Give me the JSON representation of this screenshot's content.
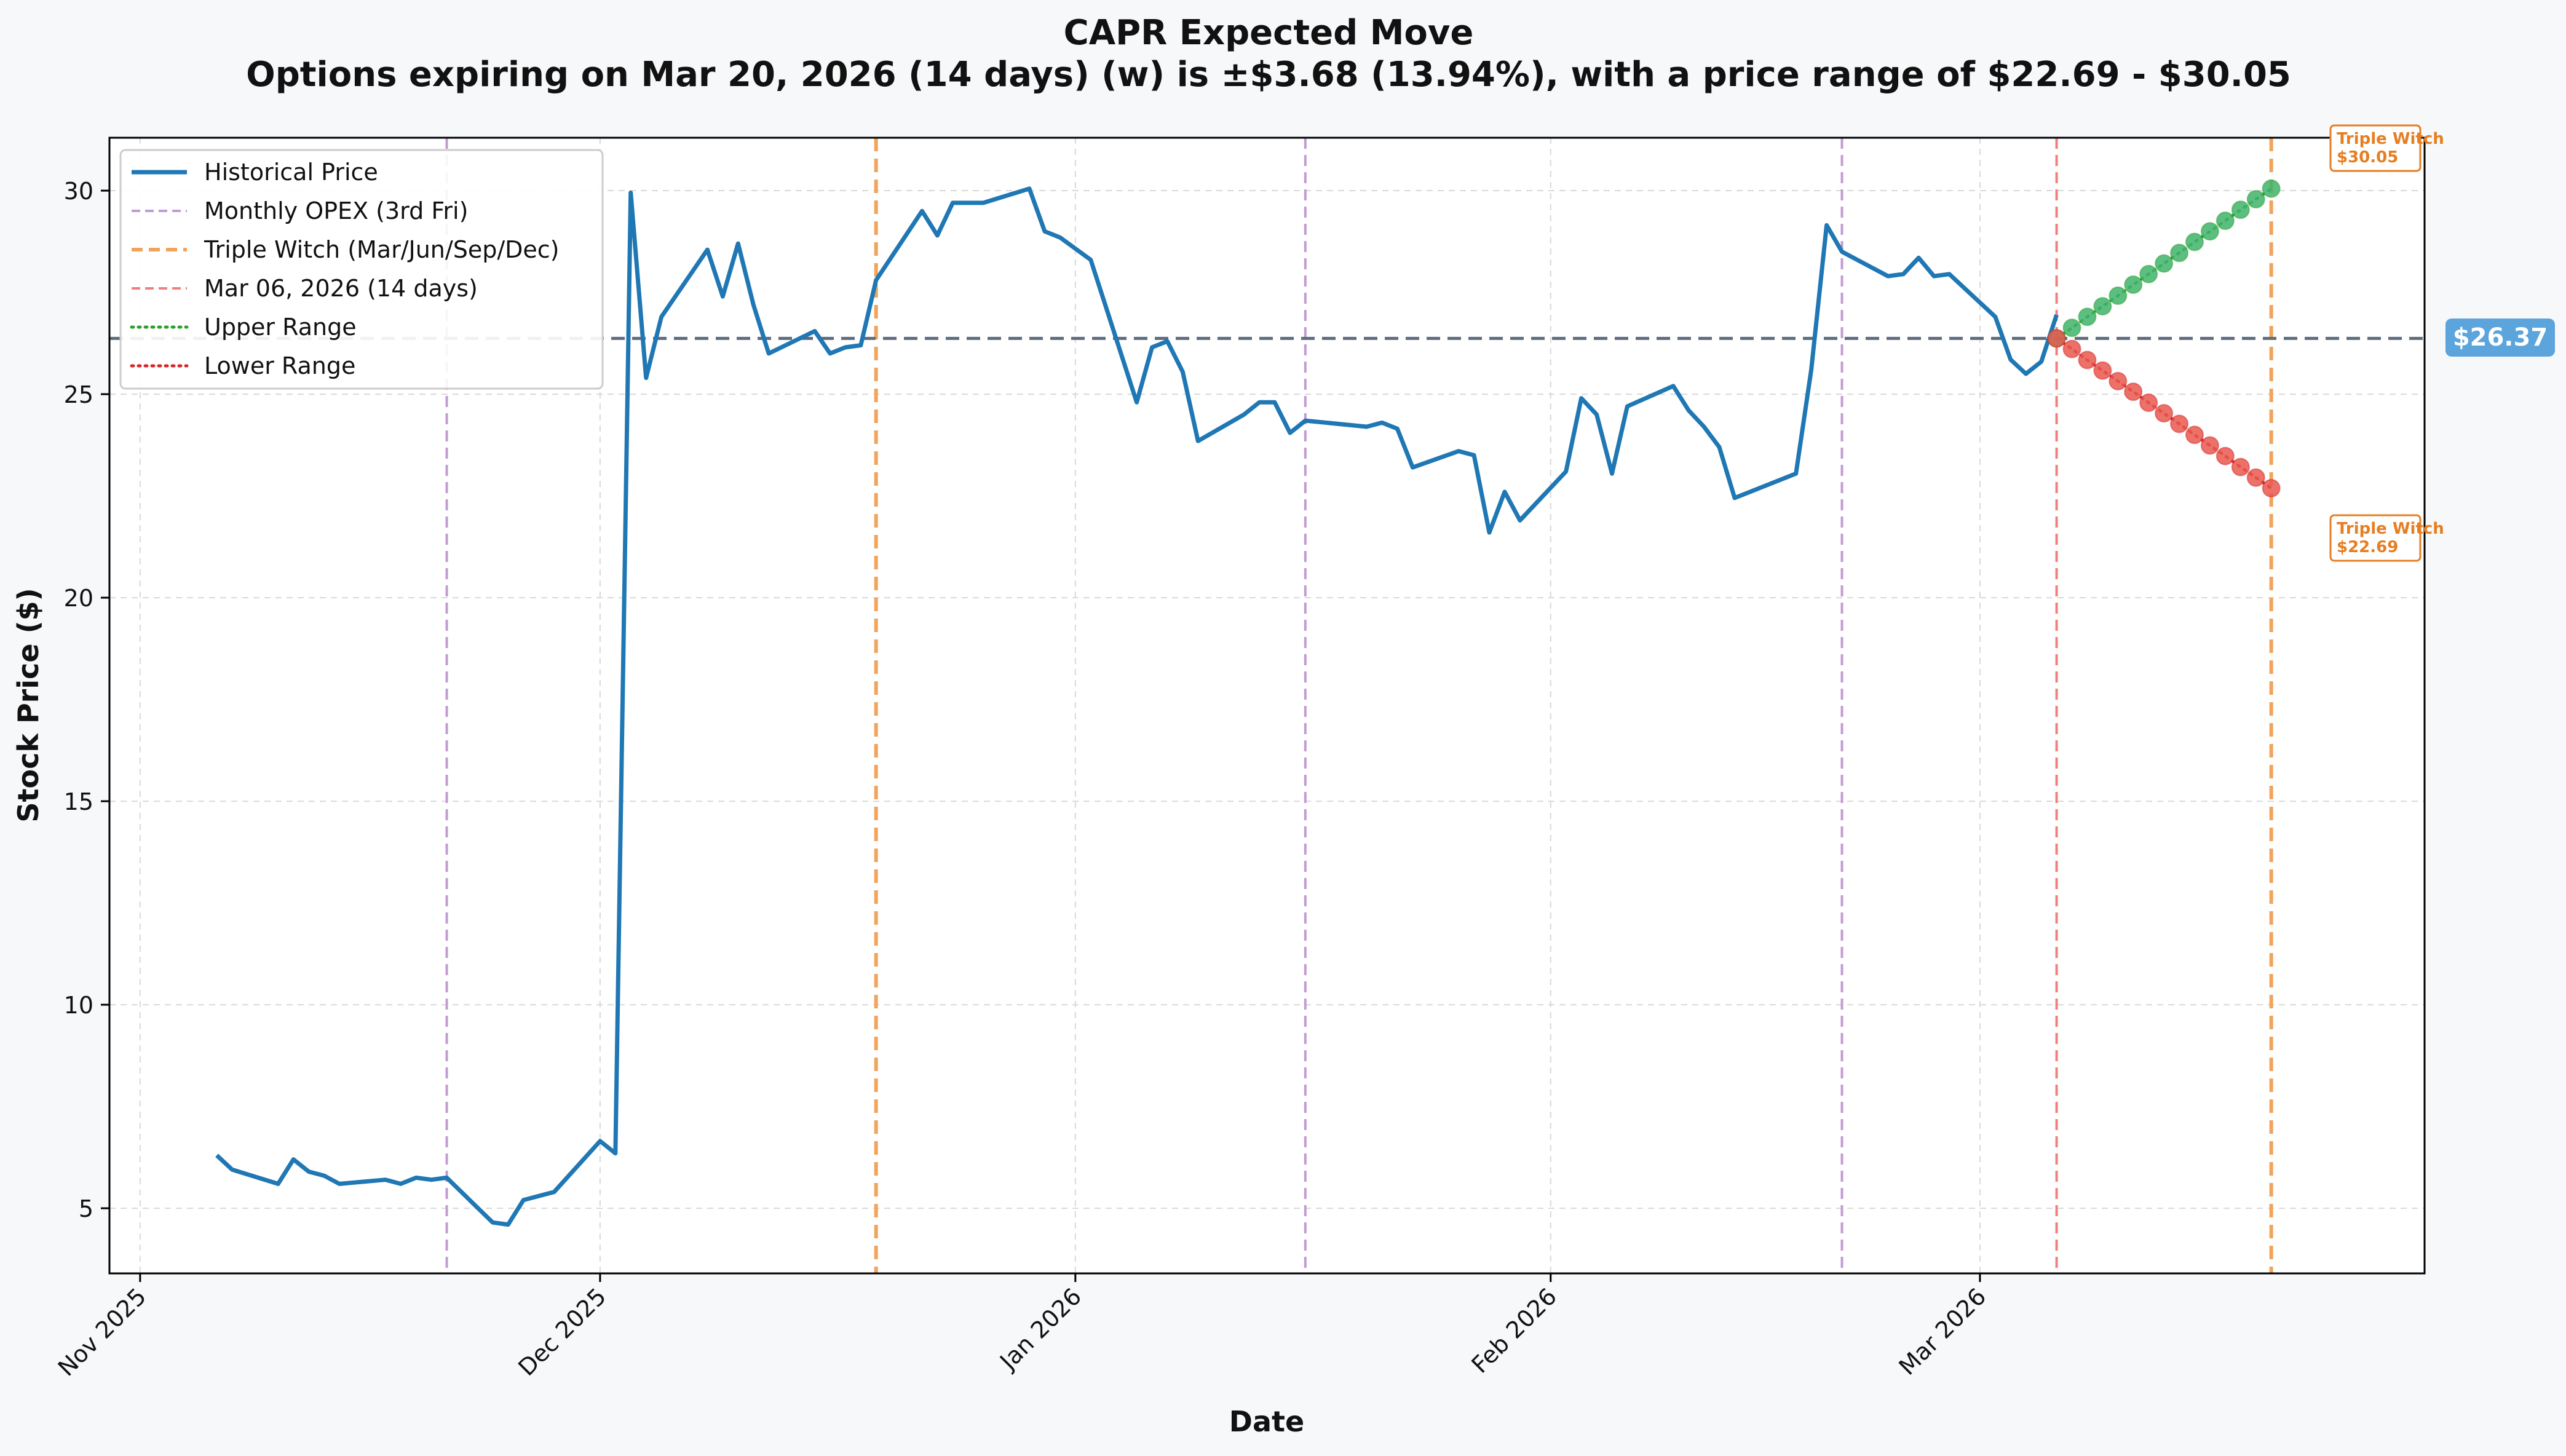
{
  "chart_data": {
    "type": "line",
    "title": "CAPR Expected Move",
    "subtitle": "Options expiring on Mar 20, 2026 (14 days) (w) is ±$3.68 (13.94%), with a price range of $22.69 - $30.05",
    "xlabel": "Date",
    "ylabel": "Stock Price ($)",
    "xlim": [
      "2025-10-30",
      "2026-03-30"
    ],
    "ylim": [
      3.4,
      31.3
    ],
    "x_ticks": [
      {
        "date": "2025-11-01",
        "label": "Nov 2025"
      },
      {
        "date": "2025-12-01",
        "label": "Dec 2025"
      },
      {
        "date": "2026-01-01",
        "label": "Jan 2026"
      },
      {
        "date": "2026-02-01",
        "label": "Feb 2026"
      },
      {
        "date": "2026-03-01",
        "label": "Mar 2026"
      }
    ],
    "y_ticks": [
      5,
      10,
      15,
      20,
      25,
      30
    ],
    "grid": true,
    "legend_position": "top-left",
    "current_price": 26.37,
    "current_price_label": "$26.37",
    "series": [
      {
        "name": "Historical Price",
        "color": "#1f77b4",
        "x": [
          "2025-11-06",
          "2025-11-07",
          "2025-11-10",
          "2025-11-11",
          "2025-11-12",
          "2025-11-13",
          "2025-11-14",
          "2025-11-17",
          "2025-11-18",
          "2025-11-19",
          "2025-11-20",
          "2025-11-21",
          "2025-11-24",
          "2025-11-25",
          "2025-11-26",
          "2025-11-28",
          "2025-12-01",
          "2025-12-02",
          "2025-12-03",
          "2025-12-04",
          "2025-12-05",
          "2025-12-08",
          "2025-12-09",
          "2025-12-10",
          "2025-12-11",
          "2025-12-12",
          "2025-12-15",
          "2025-12-16",
          "2025-12-17",
          "2025-12-18",
          "2025-12-19",
          "2025-12-22",
          "2025-12-23",
          "2025-12-24",
          "2025-12-26",
          "2025-12-29",
          "2025-12-30",
          "2025-12-31",
          "2026-01-02",
          "2026-01-05",
          "2026-01-06",
          "2026-01-07",
          "2026-01-08",
          "2026-01-09",
          "2026-01-12",
          "2026-01-13",
          "2026-01-14",
          "2026-01-15",
          "2026-01-16",
          "2026-01-20",
          "2026-01-21",
          "2026-01-22",
          "2026-01-23",
          "2026-01-26",
          "2026-01-27",
          "2026-01-28",
          "2026-01-29",
          "2026-01-30",
          "2026-02-02",
          "2026-02-03",
          "2026-02-04",
          "2026-02-05",
          "2026-02-06",
          "2026-02-09",
          "2026-02-10",
          "2026-02-11",
          "2026-02-12",
          "2026-02-13",
          "2026-02-17",
          "2026-02-18",
          "2026-02-19",
          "2026-02-20",
          "2026-02-23",
          "2026-02-24",
          "2026-02-25",
          "2026-02-26",
          "2026-02-27",
          "2026-03-02",
          "2026-03-03",
          "2026-03-04",
          "2026-03-05",
          "2026-03-06"
        ],
        "values": [
          6.3,
          5.95,
          5.6,
          6.2,
          5.9,
          5.8,
          5.6,
          5.7,
          5.6,
          5.75,
          5.7,
          5.75,
          4.65,
          4.6,
          5.2,
          5.4,
          6.65,
          6.35,
          29.95,
          25.4,
          26.9,
          28.55,
          27.4,
          28.7,
          27.2,
          26.0,
          26.55,
          26.0,
          26.15,
          26.2,
          27.8,
          29.5,
          28.9,
          29.7,
          29.7,
          30.05,
          29.0,
          28.85,
          28.3,
          24.8,
          26.15,
          26.3,
          25.55,
          23.85,
          24.5,
          24.8,
          24.8,
          24.05,
          24.35,
          24.2,
          24.3,
          24.15,
          23.2,
          23.6,
          23.5,
          21.6,
          22.6,
          21.9,
          23.1,
          24.9,
          24.5,
          23.05,
          24.7,
          25.2,
          24.6,
          24.2,
          23.7,
          22.45,
          23.05,
          25.6,
          29.15,
          28.5,
          27.9,
          27.95,
          28.35,
          27.9,
          27.95,
          26.9,
          25.85,
          25.5,
          25.8,
          26.95
        ]
      },
      {
        "name": "Upper Range",
        "color": "#2ca02c",
        "marker_color": "#3fb46b",
        "x": [
          "2026-03-06",
          "2026-03-07",
          "2026-03-08",
          "2026-03-09",
          "2026-03-10",
          "2026-03-11",
          "2026-03-12",
          "2026-03-13",
          "2026-03-14",
          "2026-03-15",
          "2026-03-16",
          "2026-03-17",
          "2026-03-18",
          "2026-03-19",
          "2026-03-20"
        ],
        "values": [
          26.37,
          26.63,
          26.9,
          27.16,
          27.42,
          27.69,
          27.95,
          28.21,
          28.47,
          28.74,
          29.0,
          29.26,
          29.53,
          29.79,
          30.05
        ]
      },
      {
        "name": "Lower Range",
        "color": "#d62728",
        "marker_color": "#e8584f",
        "x": [
          "2026-03-06",
          "2026-03-07",
          "2026-03-08",
          "2026-03-09",
          "2026-03-10",
          "2026-03-11",
          "2026-03-12",
          "2026-03-13",
          "2026-03-14",
          "2026-03-15",
          "2026-03-16",
          "2026-03-17",
          "2026-03-18",
          "2026-03-19",
          "2026-03-20"
        ],
        "values": [
          26.37,
          26.11,
          25.84,
          25.58,
          25.32,
          25.06,
          24.79,
          24.53,
          24.27,
          24.0,
          23.74,
          23.48,
          23.21,
          22.95,
          22.69
        ]
      }
    ],
    "vertical_lines": [
      {
        "kind": "opex",
        "date": "2025-11-21",
        "color": "#c39bd3"
      },
      {
        "kind": "opex",
        "date": "2026-01-16",
        "color": "#c39bd3"
      },
      {
        "kind": "opex",
        "date": "2026-02-20",
        "color": "#c39bd3"
      },
      {
        "kind": "triple",
        "date": "2025-12-19",
        "color": "#f0a45c"
      },
      {
        "kind": "triple",
        "date": "2026-03-20",
        "color": "#f0a45c"
      },
      {
        "kind": "expiry",
        "date": "2026-03-06",
        "color": "#f08080"
      }
    ],
    "annotations": [
      {
        "line1": "Triple Witch",
        "line2": "$30.05",
        "color": "#e67e22"
      },
      {
        "line1": "Triple Witch",
        "line2": "$22.69",
        "color": "#e67e22"
      }
    ],
    "legend": [
      {
        "label": "Historical Price",
        "style": "solid",
        "color": "#1f77b4"
      },
      {
        "label": "Monthly OPEX (3rd Fri)",
        "style": "dashed",
        "color": "#c39bd3"
      },
      {
        "label": "Triple Witch (Mar/Jun/Sep/Dec)",
        "style": "dashed-thick",
        "color": "#f0a45c"
      },
      {
        "label": "Mar 06, 2026 (14 days)",
        "style": "dashed",
        "color": "#f08080"
      },
      {
        "label": "Upper Range",
        "style": "dotted",
        "color": "#2ca02c"
      },
      {
        "label": "Lower Range",
        "style": "dotted",
        "color": "#d62728"
      }
    ]
  }
}
